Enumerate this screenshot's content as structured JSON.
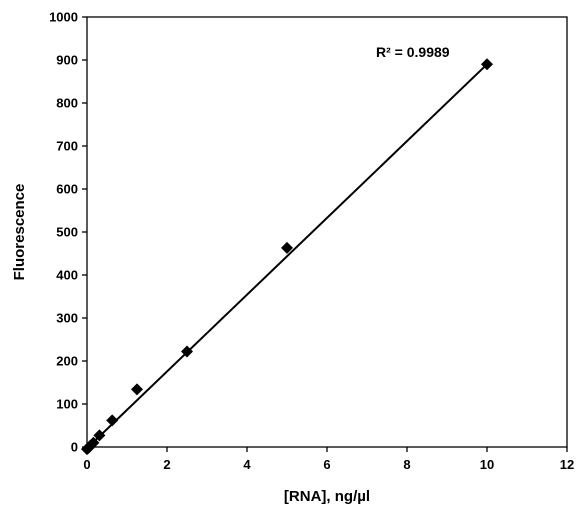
{
  "chart_data": {
    "type": "scatter",
    "title": "",
    "xlabel": "[RNA], ng/µl",
    "ylabel": "Fluorescence",
    "xlim": [
      0,
      12
    ],
    "ylim": [
      0,
      1000
    ],
    "xticks": [
      0,
      2,
      4,
      6,
      8,
      10,
      12
    ],
    "yticks": [
      0,
      100,
      200,
      300,
      400,
      500,
      600,
      700,
      800,
      900,
      1000
    ],
    "grid": false,
    "legend": "none",
    "marker": "diamond",
    "marker_color": "#000000",
    "series": [
      {
        "x": [
          0,
          0.04,
          0.08,
          0.16,
          0.31,
          0.63,
          1.25,
          2.5,
          5,
          10
        ],
        "y": [
          -5,
          -2,
          3,
          10,
          27,
          62,
          134,
          222,
          463,
          890
        ]
      }
    ],
    "trendline": {
      "type": "linear",
      "x": [
        0,
        10
      ],
      "y": [
        -3,
        890
      ]
    },
    "annotations": [
      {
        "text": "R² = 0.9989"
      }
    ]
  }
}
